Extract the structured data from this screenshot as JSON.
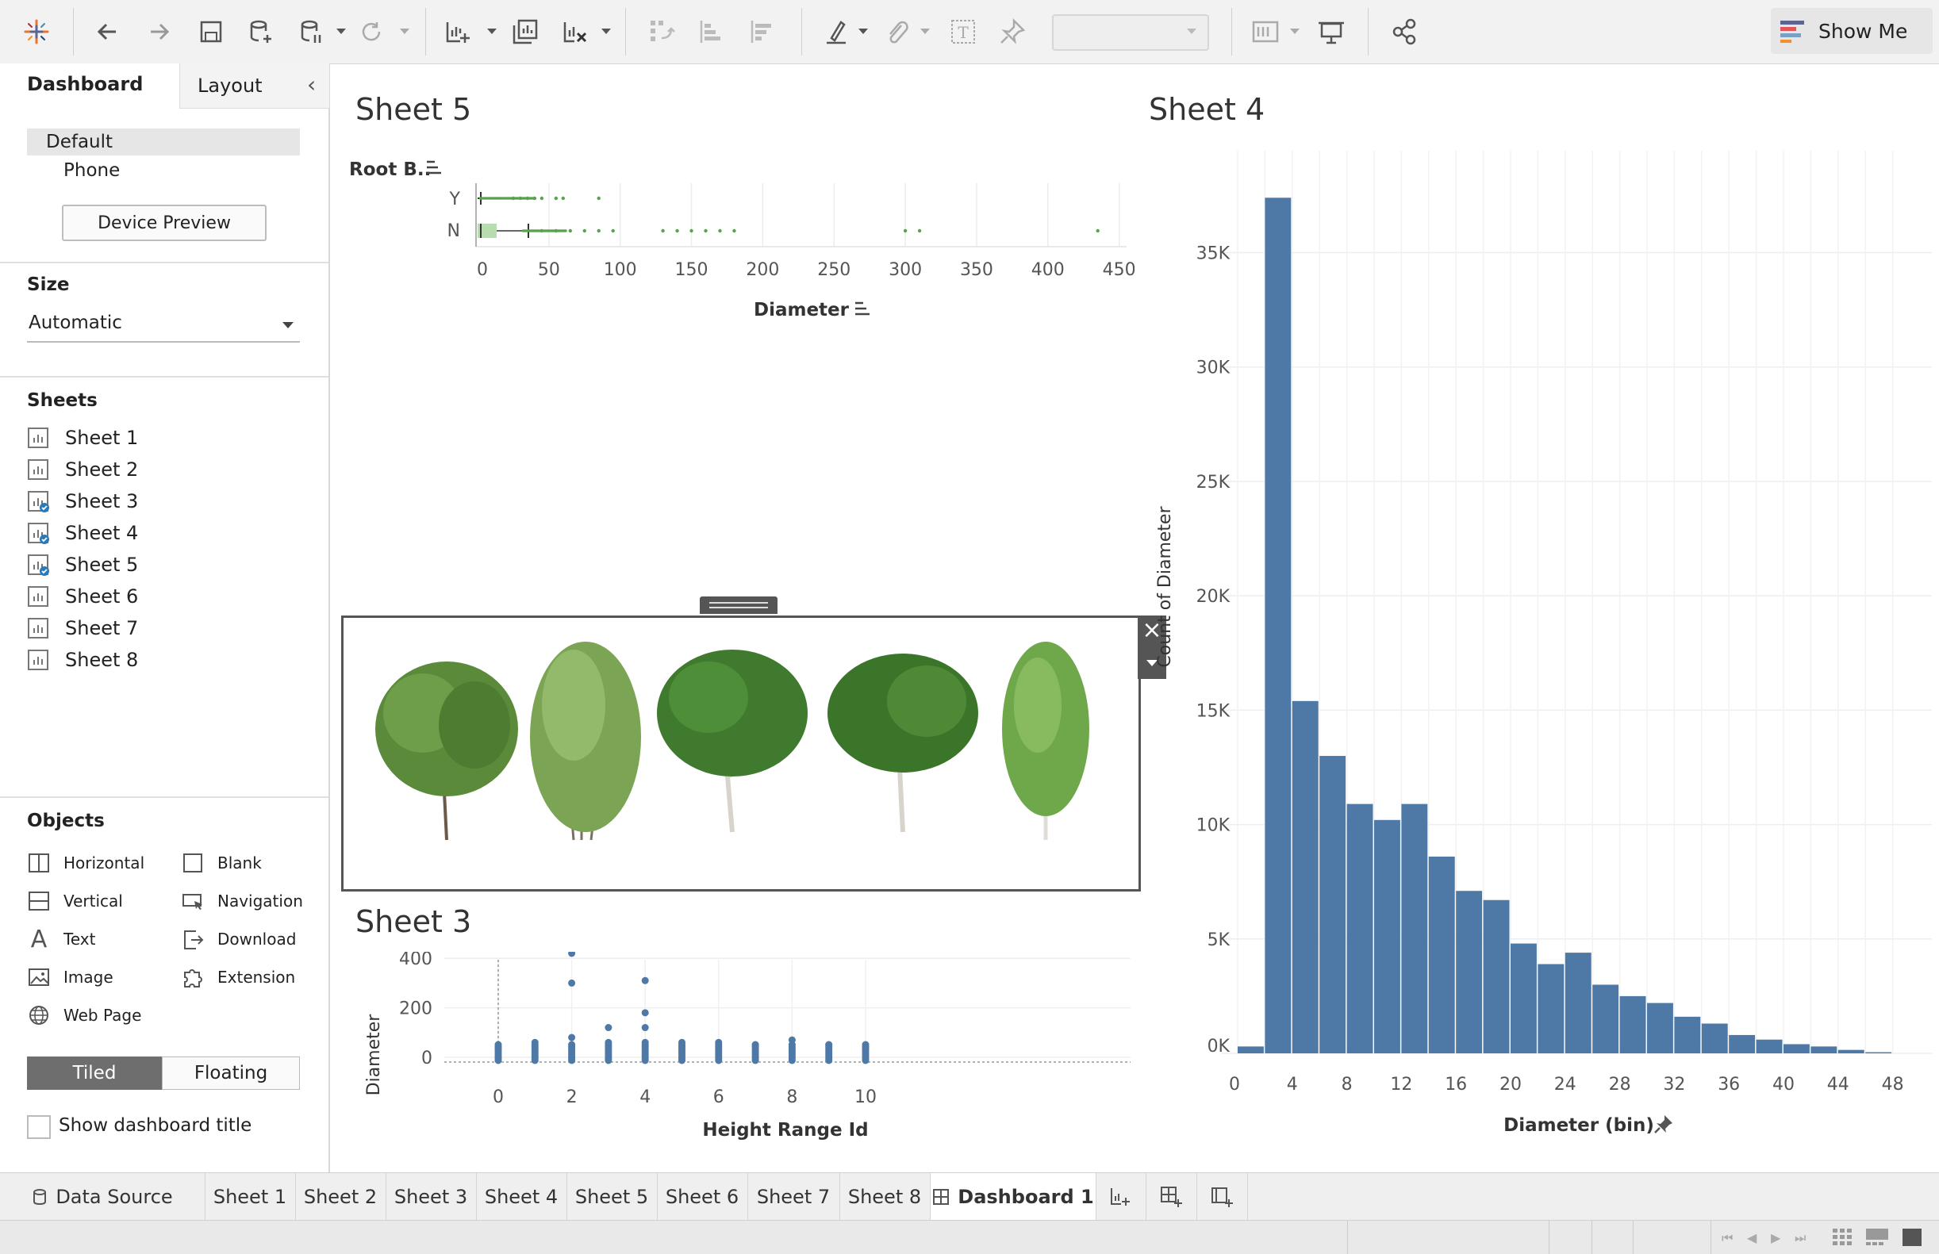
{
  "toolbar": {
    "show_me_label": "Show Me",
    "icons": [
      "tableau-logo-icon",
      "undo-icon",
      "redo-icon",
      "save-icon",
      "new-datasource-icon",
      "pause-updates-icon",
      "refresh-icon",
      "new-worksheet-icon",
      "duplicate-sheet-icon",
      "clear-sheet-icon",
      "swap-icon",
      "sort-ascending-icon",
      "sort-descending-icon",
      "highlight-icon",
      "group-icon",
      "labels-icon",
      "pin-icon",
      "fit-select",
      "show-cards-icon",
      "presentation-icon",
      "share-icon"
    ]
  },
  "left_panel": {
    "tabs": {
      "dashboard": "Dashboard",
      "layout": "Layout"
    },
    "device": {
      "default": "Default",
      "phone": "Phone",
      "preview_button": "Device Preview"
    },
    "size": {
      "title": "Size",
      "value": "Automatic"
    },
    "sheets_title": "Sheets",
    "sheets": [
      {
        "label": "Sheet 1",
        "used": false
      },
      {
        "label": "Sheet 2",
        "used": false
      },
      {
        "label": "Sheet 3",
        "used": true
      },
      {
        "label": "Sheet 4",
        "used": true
      },
      {
        "label": "Sheet 5",
        "used": true
      },
      {
        "label": "Sheet 6",
        "used": false
      },
      {
        "label": "Sheet 7",
        "used": false
      },
      {
        "label": "Sheet 8",
        "used": false
      }
    ],
    "objects_title": "Objects",
    "objects_left": [
      "Horizontal",
      "Vertical",
      "Text",
      "Image",
      "Web Page"
    ],
    "objects_right": [
      "Blank",
      "Navigation",
      "Download",
      "Extension"
    ],
    "layout_toggle": {
      "tiled": "Tiled",
      "floating": "Floating"
    },
    "show_title_label": "Show dashboard title"
  },
  "sheet5": {
    "title": "Sheet 5",
    "row_header": "Root B..",
    "categories": [
      "Y",
      "N"
    ],
    "x_ticks": [
      "0",
      "50",
      "100",
      "150",
      "200",
      "250",
      "300",
      "350",
      "400",
      "450"
    ],
    "x_label": "Diameter"
  },
  "sheet3": {
    "title": "Sheet 3",
    "y_label": "Diameter",
    "y_ticks": [
      "400",
      "200",
      "0"
    ],
    "x_ticks": [
      "0",
      "2",
      "4",
      "6",
      "8",
      "10"
    ],
    "x_label": "Height Range Id"
  },
  "sheet4": {
    "title": "Sheet 4",
    "y_label": "Count of Diameter",
    "y_ticks": [
      "35K",
      "30K",
      "25K",
      "20K",
      "15K",
      "10K",
      "5K",
      "0K"
    ],
    "x_ticks": [
      "0",
      "4",
      "8",
      "12",
      "16",
      "20",
      "24",
      "28",
      "32",
      "36",
      "40",
      "44",
      "48"
    ],
    "x_label": "Diameter (bin)"
  },
  "chart_data": [
    {
      "type": "bar",
      "title": "Sheet 4",
      "xlabel": "Diameter (bin)",
      "ylabel": "Count of Diameter",
      "x": [
        0,
        2,
        4,
        6,
        8,
        10,
        12,
        14,
        16,
        18,
        20,
        22,
        24,
        26,
        28,
        30,
        32,
        34,
        36,
        38,
        40,
        42,
        44,
        46
      ],
      "values": [
        300,
        37400,
        15400,
        13000,
        10900,
        10200,
        10900,
        8600,
        7100,
        6700,
        4800,
        3900,
        4400,
        3000,
        2500,
        2200,
        1600,
        1300,
        800,
        600,
        400,
        300,
        150,
        50
      ],
      "ylim": [
        0,
        38000
      ],
      "xlim": [
        0,
        50
      ],
      "color": "#4e79a7"
    },
    {
      "type": "scatter",
      "title": "Sheet 3",
      "xlabel": "Height Range Id",
      "ylabel": "Diameter",
      "x": [
        0,
        1,
        2,
        2,
        2,
        3,
        3,
        4,
        4,
        4,
        4,
        5,
        6,
        7,
        8,
        9,
        10
      ],
      "y": [
        40,
        60,
        80,
        300,
        420,
        60,
        120,
        60,
        120,
        180,
        310,
        60,
        60,
        50,
        70,
        50,
        40
      ],
      "ylim": [
        0,
        450
      ],
      "color": "#4e79a7"
    },
    {
      "type": "box",
      "title": "Sheet 5",
      "categories": [
        "Y",
        "N"
      ],
      "xlabel": "Diameter",
      "color": "#59a14f",
      "series": [
        {
          "name": "Y",
          "outliers": [
            25,
            30,
            35,
            40,
            45,
            55,
            60,
            85
          ]
        },
        {
          "name": "N",
          "q1": 2,
          "median": 10,
          "q3": 30,
          "outliers": [
            45,
            55,
            65,
            75,
            85,
            95,
            130,
            140,
            150,
            160,
            170,
            180,
            300,
            310,
            435
          ]
        }
      ]
    }
  ]
}
